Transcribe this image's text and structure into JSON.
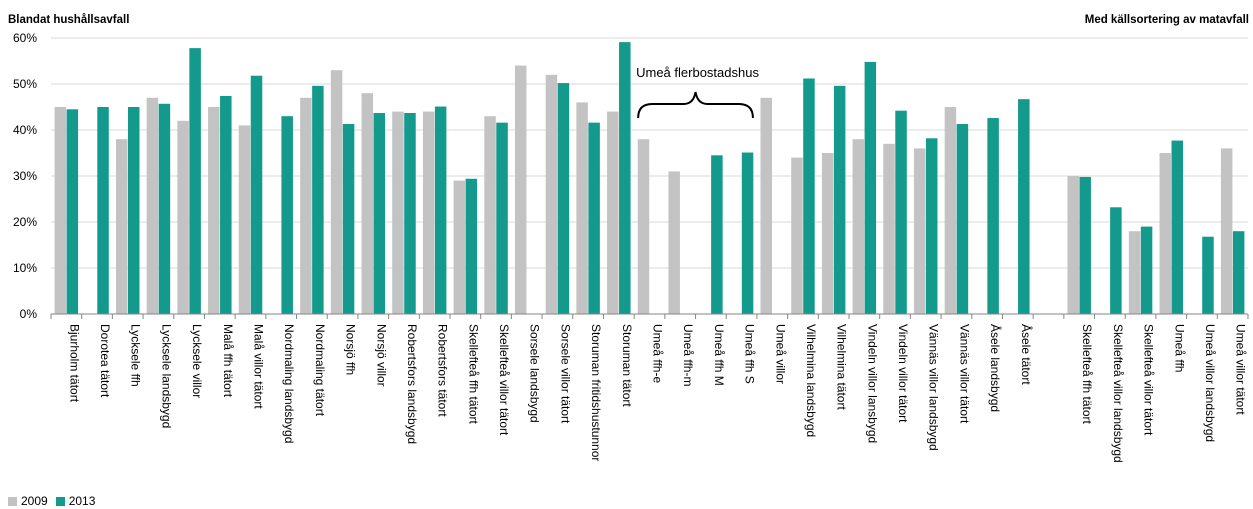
{
  "header": {
    "left": "Blandat hushållsavfall",
    "right": "Med källsortering av matavfall"
  },
  "annotation": "Umeå flerbostadshus",
  "colors": {
    "2009": "#c3c3c3",
    "2013": "#139a8c",
    "axis": "#868686",
    "grid": "#d9d9d9"
  },
  "legend": [
    {
      "label": "2009",
      "color": "#c3c3c3"
    },
    {
      "label": "2013",
      "color": "#139a8c"
    }
  ],
  "chart_data": {
    "type": "bar",
    "ylim": [
      0,
      60
    ],
    "ytick_labels": [
      "0%",
      "10%",
      "20%",
      "30%",
      "40%",
      "50%",
      "60%"
    ],
    "categories": [
      "Bjurholm tätort",
      "Dorotea tätort",
      "Lycksele ffh",
      "Lycksele landsbygd",
      "Lycksele villor",
      "Malå ffh tätort",
      "Malå villor tätort",
      "Nordmaling landsbygd",
      "Nordmaling tätort",
      "Norsjö ffh",
      "Norsjö villor",
      "Robertsfors landsbygd",
      "Robertsfors tätort",
      "Skellefteå ffh tätort",
      "Skellefteå villor tätort",
      "Sorsele landsbygd",
      "Sorsele villor tätort",
      "Storuman fritidshustunnor",
      "Storuman tätort",
      "Umeå ffh-e",
      "Umeå ffh-m",
      "Umeå ffh M",
      "Umeå ffh S",
      "Umeå villor",
      "Vilhelmina landsbygd",
      "Vilhelmina tätort",
      "Vindeln villor lansbygd",
      "Vindeln villor tätort",
      "Vännäs villor landsbygd",
      "Vännäs villor tätort",
      "Åsele landsbygd",
      "Åsele tätort",
      "",
      "Skellefteå ffh tätort",
      "Skellefteå villor landsbygd",
      "Skellefteå villor tätort",
      "Umeå ffh",
      "Umeå villor landsbygd",
      "Umeå villor tätort"
    ],
    "series": [
      {
        "name": "2009",
        "values": [
          45,
          null,
          38,
          47,
          42,
          45,
          41,
          null,
          47,
          53,
          48,
          44,
          44,
          29,
          43,
          54,
          52,
          46,
          44,
          38,
          31,
          null,
          null,
          47,
          34,
          35,
          38,
          37,
          36,
          45,
          null,
          null,
          null,
          30,
          null,
          18,
          35,
          null,
          36
        ]
      },
      {
        "name": "2013",
        "values": [
          44.5,
          45,
          45,
          45.7,
          57.8,
          47.4,
          51.8,
          43,
          49.6,
          41.3,
          43.7,
          43.7,
          45.1,
          29.4,
          41.6,
          null,
          50.2,
          41.6,
          59.1,
          null,
          null,
          34.5,
          35.1,
          null,
          51.2,
          49.6,
          54.8,
          44.2,
          38.2,
          41.3,
          42.6,
          46.7,
          null,
          29.8,
          23.2,
          19,
          37.7,
          16.8,
          18
        ]
      }
    ]
  }
}
